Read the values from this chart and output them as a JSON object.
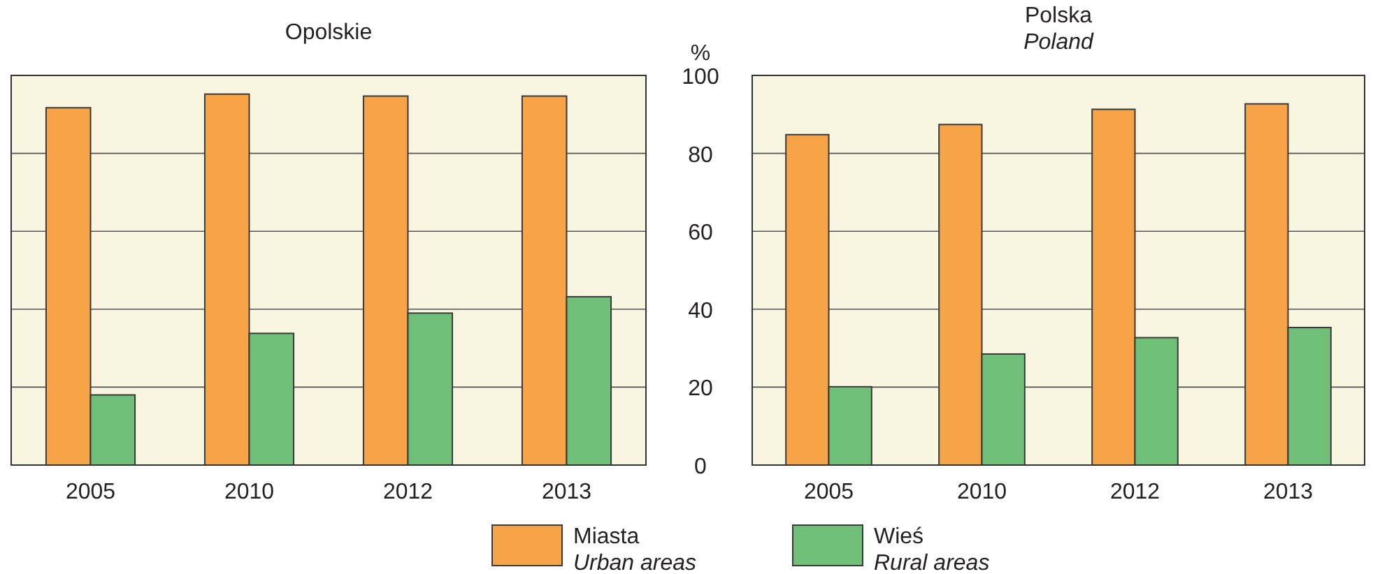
{
  "chart_data": [
    {
      "type": "bar",
      "title": "Opolskie",
      "categories": [
        "2005",
        "2010",
        "2012",
        "2013"
      ],
      "series": [
        {
          "name": "Miasta\nUrban areas",
          "color": "#f7a449",
          "values": [
            91.7,
            95.2,
            94.7,
            94.7
          ]
        },
        {
          "name": "Wieś\nRural areas",
          "color": "#6fbf78",
          "values": [
            18.0,
            33.8,
            39.0,
            43.2
          ]
        }
      ],
      "ylim": [
        0,
        100
      ],
      "yticks": [
        0,
        20,
        40,
        60,
        80,
        100
      ],
      "grid": "y",
      "tick_labels": "x",
      "legend": "bottom"
    },
    {
      "type": "bar",
      "title": "Polska\nPoland",
      "ylabel": "%",
      "categories": [
        "2005",
        "2010",
        "2012",
        "2013"
      ],
      "series": [
        {
          "color": "#f7a449",
          "values": [
            84.8,
            87.4,
            91.3,
            92.7
          ]
        },
        {
          "color": "#6fbf78",
          "values": [
            20.1,
            28.5,
            32.7,
            35.3
          ]
        }
      ],
      "ylim": [
        0,
        100
      ],
      "yticks": [
        0,
        20,
        40,
        60,
        80,
        100
      ],
      "grid": "y"
    }
  ]
}
